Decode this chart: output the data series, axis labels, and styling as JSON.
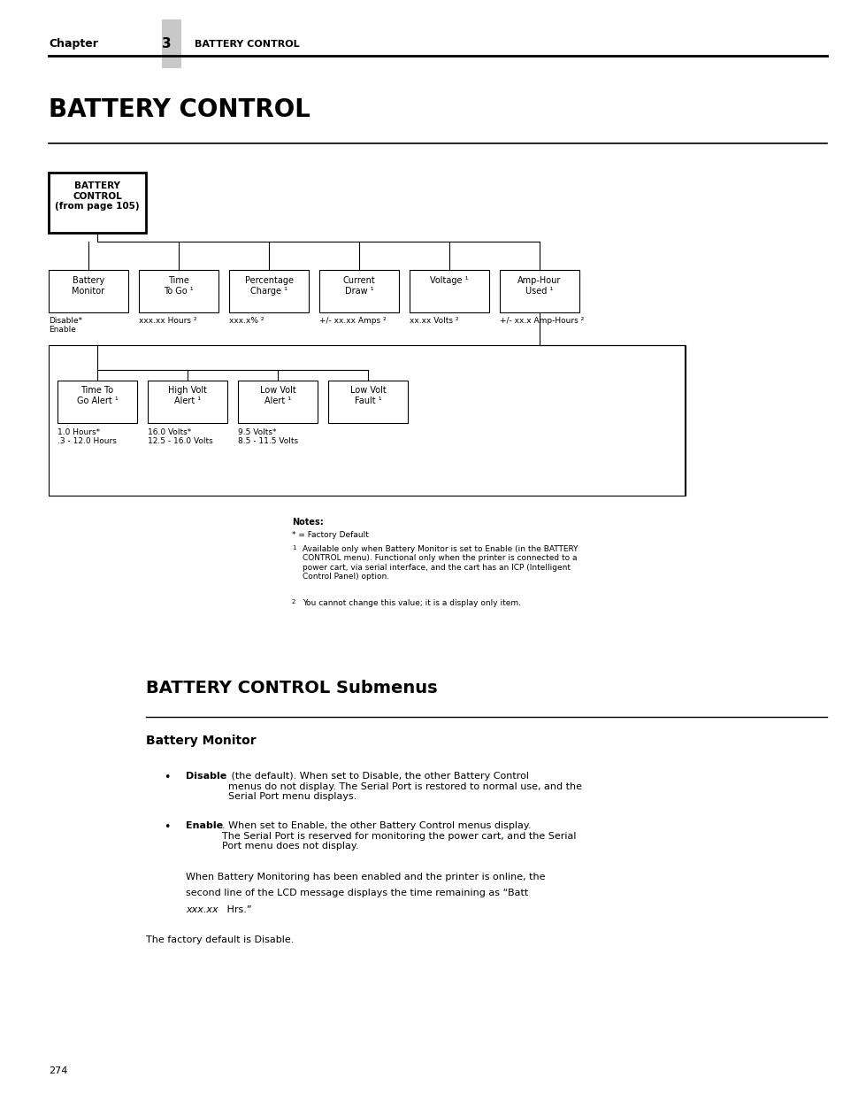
{
  "bg_color": "#ffffff",
  "page_width": 9.54,
  "page_height": 12.35,
  "header_chapter": "Chapter",
  "header_num": "3",
  "header_title": "BATTERY CONTROL",
  "tab_color": "#c8c8c8",
  "section_title": "BATTERY CONTROL",
  "battery_box_label": "BATTERY\nCONTROL\n(from page 105)",
  "top_boxes": [
    {
      "label": "Battery\nMonitor"
    },
    {
      "label": "Time\nTo Go ¹"
    },
    {
      "label": "Percentage\nCharge ¹"
    },
    {
      "label": "Current\nDraw ¹"
    },
    {
      "label": "Voltage ¹"
    },
    {
      "label": "Amp-Hour\nUsed ¹"
    }
  ],
  "top_sublabels": [
    "Disable*\nEnable",
    "xxx.xx Hours ²",
    "xxx.x% ²",
    "+/- xx.xx Amps ²",
    "xx.xx Volts ²",
    "+/- xx.x Amp-Hours ²"
  ],
  "bottom_boxes": [
    {
      "label": "Time To\nGo Alert ¹"
    },
    {
      "label": "High Volt\nAlert ¹"
    },
    {
      "label": "Low Volt\nAlert ¹"
    },
    {
      "label": "Low Volt\nFault ¹"
    }
  ],
  "bottom_sublabels": [
    "1.0 Hours*\n.3 - 12.0 Hours",
    "16.0 Volts*\n12.5 - 16.0 Volts",
    "9.5 Volts*\n8.5 - 11.5 Volts",
    ""
  ],
  "note1": "Available only when Battery Monitor is set to Enable (in the BATTERY\nCONTROL menu). Functional only when the printer is connected to a\npower cart, via serial interface, and the cart has an ICP (Intelligent\nControl Panel) option.",
  "note2": "You cannot change this value; it is a display only item.",
  "submenus_title": "BATTERY CONTROL Submenus",
  "battery_monitor_heading": "Battery Monitor",
  "bullet1_bold": "Disable",
  "bullet1_rest": " (the default). When set to Disable, the other Battery Control\nmenus do not display. The Serial Port is restored to normal use, and the\nSerial Port menu displays.",
  "bullet2_bold": "Enable",
  "bullet2_rest": ". When set to Enable, the other Battery Control menus display.\nThe Serial Port is reserved for monitoring the power cart, and the Serial\nPort menu does not display.",
  "extra_para_line1": "When Battery Monitoring has been enabled and the printer is online, the",
  "extra_para_line2": "second line of the LCD message displays the time remaining as “Batt",
  "extra_para_line3_italic": "xxx.xx",
  "extra_para_line3_rest": " Hrs.”",
  "factory_default": "The factory default is Disable.",
  "page_number": "274"
}
